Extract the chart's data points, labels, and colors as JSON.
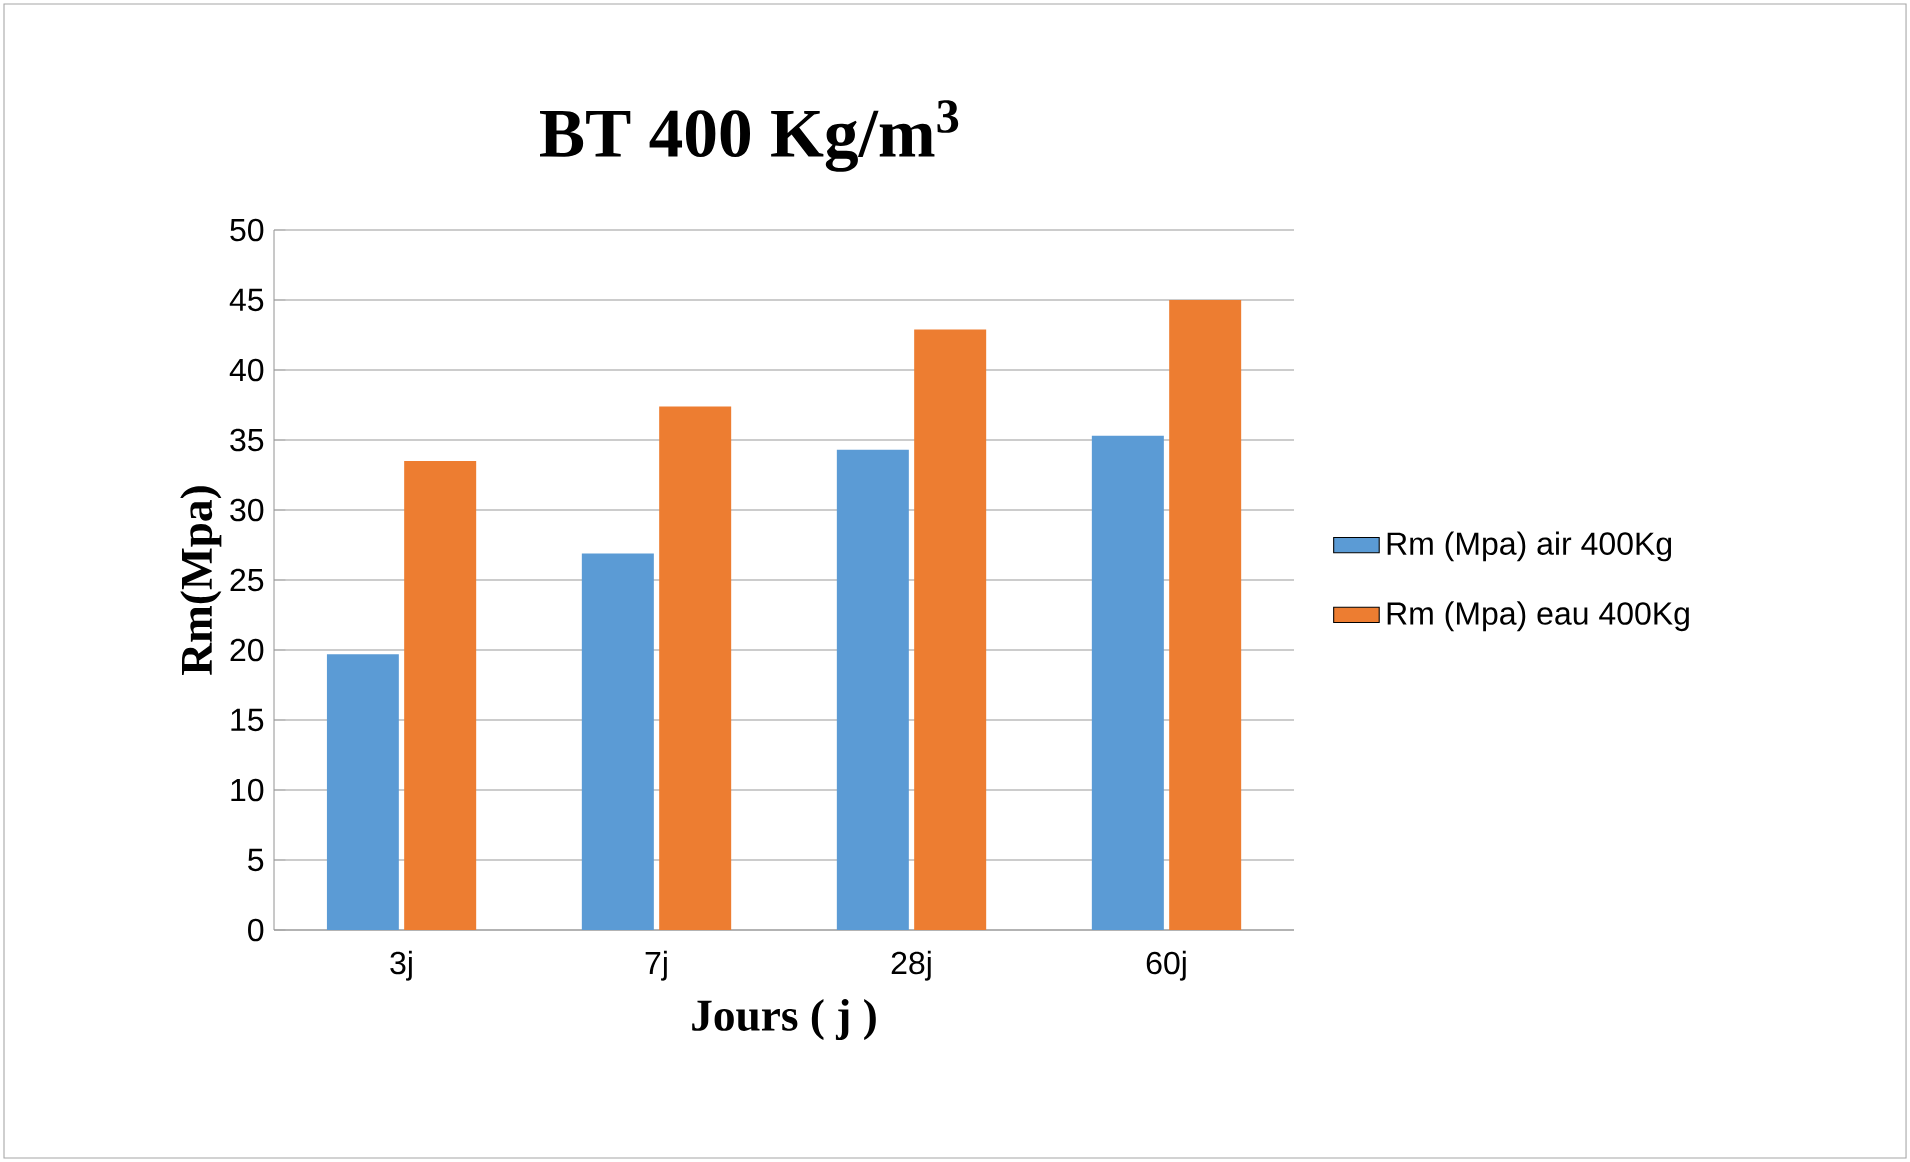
{
  "chart_data": {
    "type": "bar",
    "title": "BT 400 Kg/m$^{3}$",
    "xlabel": "Jours ( j )",
    "ylabel": "Rm(Mpa)",
    "categories": [
      "3j",
      "7j",
      "28j",
      "60j"
    ],
    "series": [
      {
        "name": "Rm (Mpa) air 400Kg",
        "color": "#5b9bd5",
        "values": [
          19.7,
          26.9,
          34.3,
          35.3
        ]
      },
      {
        "name": "Rm (Mpa) eau  400Kg",
        "color": "#ed7d31",
        "values": [
          33.5,
          37.4,
          42.9,
          45.0
        ]
      }
    ],
    "ylim": [
      0,
      50
    ],
    "yticks": [
      0,
      5,
      10,
      15,
      20,
      25,
      30,
      35,
      40,
      45,
      50
    ],
    "grid": "y",
    "legend": "right"
  }
}
